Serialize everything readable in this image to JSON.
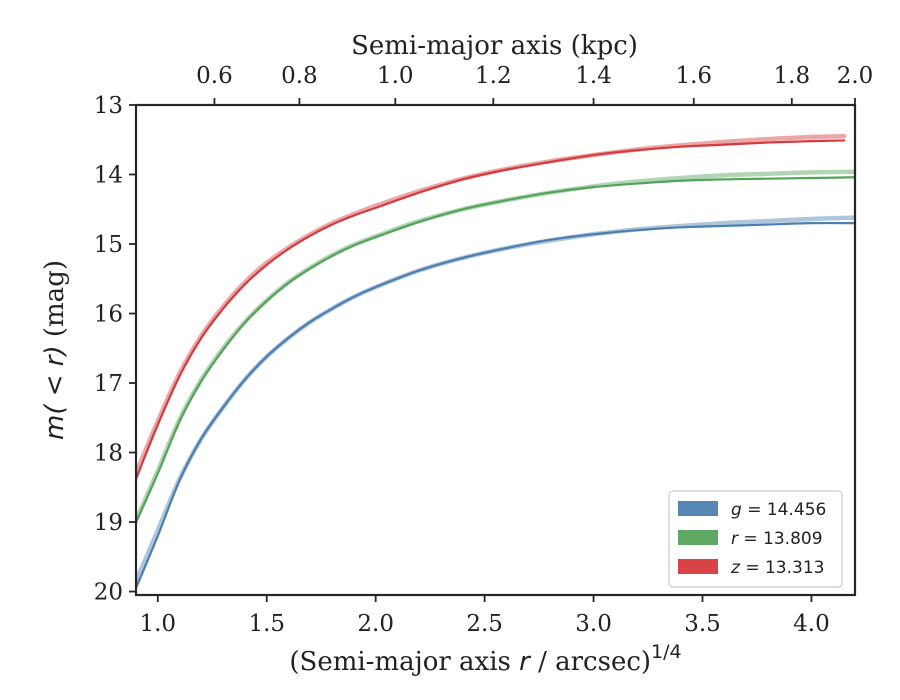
{
  "chart_data": {
    "type": "line",
    "xlabel": "(Semi-major axis r / arcsec)^1/4",
    "ylabel": "m(<r) (mag)",
    "top_xlabel": "Semi-major axis (kpc)",
    "xlim": [
      0.9,
      4.2
    ],
    "ylim": [
      20.05,
      13.0
    ],
    "y_inverted": true,
    "grid": false,
    "legend_position": "lower right",
    "x_ticks": [
      1.0,
      1.5,
      2.0,
      2.5,
      3.0,
      3.5,
      4.0
    ],
    "x_tick_labels": [
      "1.0",
      "1.5",
      "2.0",
      "2.5",
      "3.0",
      "3.5",
      "4.0"
    ],
    "y_ticks": [
      13,
      14,
      15,
      16,
      17,
      18,
      19,
      20
    ],
    "y_tick_labels": [
      "13",
      "14",
      "15",
      "16",
      "17",
      "18",
      "19",
      "20"
    ],
    "top_x_ticks": [
      0.6,
      0.8,
      1.0,
      1.2,
      1.4,
      1.6,
      1.8,
      2.0
    ],
    "top_x_tick_labels": [
      "0.6",
      "0.8",
      "1.0",
      "1.2",
      "1.4",
      "1.6",
      "1.8",
      "2.0"
    ],
    "top_x_tick_positions": [
      1.26,
      1.65,
      2.09,
      2.54,
      3.0,
      3.46,
      3.91,
      4.36
    ],
    "series": [
      {
        "name": "g = 14.456",
        "legend_var": "g",
        "legend_value": "14.456",
        "color": "#4c7fb0",
        "x": [
          0.9,
          1.0,
          1.1,
          1.2,
          1.3,
          1.4,
          1.5,
          1.6,
          1.7,
          1.8,
          1.9,
          2.0,
          2.2,
          2.4,
          2.6,
          2.8,
          3.0,
          3.2,
          3.4,
          3.6,
          3.8,
          4.0,
          4.2
        ],
        "values": [
          19.95,
          19.2,
          18.4,
          17.8,
          17.35,
          16.95,
          16.62,
          16.35,
          16.12,
          15.93,
          15.76,
          15.62,
          15.38,
          15.2,
          15.06,
          14.94,
          14.86,
          14.8,
          14.76,
          14.74,
          14.72,
          14.7,
          14.7
        ],
        "model_values": [
          19.85,
          19.12,
          18.38,
          17.8,
          17.35,
          16.95,
          16.62,
          16.35,
          16.12,
          15.93,
          15.76,
          15.62,
          15.38,
          15.2,
          15.06,
          14.95,
          14.86,
          14.79,
          14.74,
          14.7,
          14.67,
          14.64,
          14.62
        ]
      },
      {
        "name": "r = 13.809",
        "legend_var": "r",
        "legend_value": "13.809",
        "color": "#55a35a",
        "x": [
          0.9,
          1.0,
          1.1,
          1.2,
          1.3,
          1.4,
          1.5,
          1.6,
          1.7,
          1.8,
          1.9,
          2.0,
          2.2,
          2.4,
          2.6,
          2.8,
          3.0,
          3.2,
          3.4,
          3.6,
          3.8,
          4.0,
          4.2
        ],
        "values": [
          19.0,
          18.3,
          17.55,
          16.97,
          16.52,
          16.13,
          15.82,
          15.56,
          15.35,
          15.17,
          15.02,
          14.9,
          14.68,
          14.5,
          14.37,
          14.26,
          14.18,
          14.13,
          14.09,
          14.07,
          14.06,
          14.05,
          14.04
        ],
        "model_values": [
          18.98,
          18.26,
          17.52,
          16.95,
          16.5,
          16.12,
          15.81,
          15.55,
          15.34,
          15.16,
          15.01,
          14.89,
          14.67,
          14.5,
          14.37,
          14.26,
          14.17,
          14.1,
          14.05,
          14.01,
          13.99,
          13.97,
          13.96
        ]
      },
      {
        "name": "z = 13.313",
        "legend_var": "z",
        "legend_value": "13.313",
        "color": "#d63a3c",
        "x": [
          0.9,
          1.0,
          1.1,
          1.2,
          1.3,
          1.4,
          1.5,
          1.6,
          1.7,
          1.8,
          1.9,
          2.0,
          2.2,
          2.4,
          2.6,
          2.8,
          3.0,
          3.2,
          3.4,
          3.6,
          3.8,
          4.0,
          4.15
        ],
        "values": [
          18.38,
          17.6,
          16.9,
          16.35,
          15.93,
          15.58,
          15.3,
          15.07,
          14.88,
          14.72,
          14.59,
          14.48,
          14.26,
          14.07,
          13.93,
          13.82,
          13.72,
          13.65,
          13.6,
          13.57,
          13.54,
          13.52,
          13.51
        ],
        "model_values": [
          18.3,
          17.55,
          16.86,
          16.32,
          15.9,
          15.55,
          15.27,
          15.05,
          14.86,
          14.7,
          14.57,
          14.45,
          14.24,
          14.06,
          13.92,
          13.81,
          13.72,
          13.64,
          13.58,
          13.53,
          13.49,
          13.46,
          13.45
        ]
      }
    ]
  }
}
